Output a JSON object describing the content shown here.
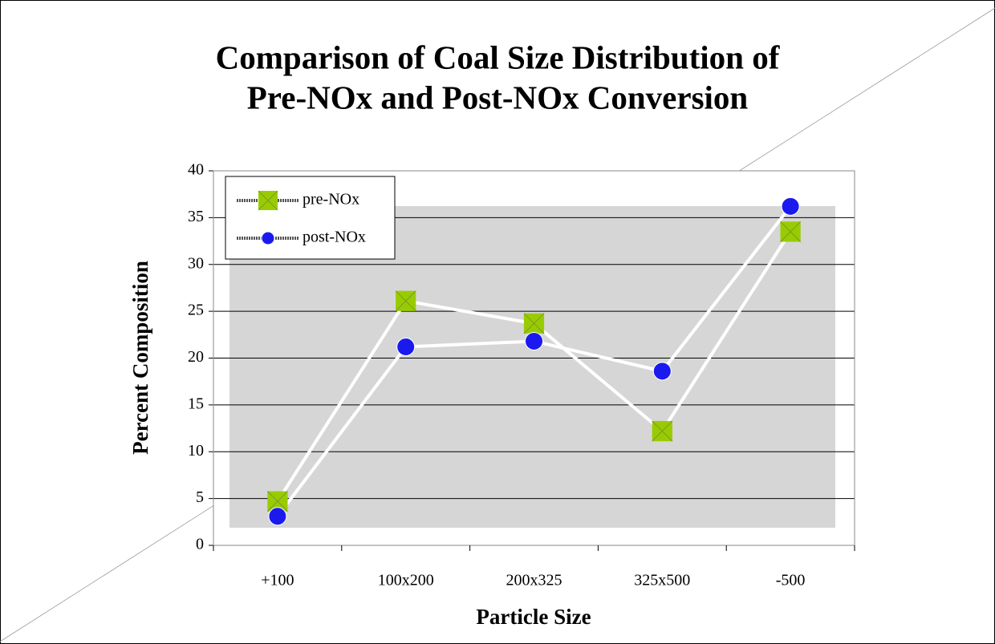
{
  "chart_data": {
    "type": "line",
    "title": [
      "Comparison of Coal Size Distribution of",
      "Pre-NOx and Post-NOx Conversion"
    ],
    "x_label": "Particle Size",
    "y_label": "Percent Composition",
    "categories": [
      "+100",
      "100x200",
      "200x325",
      "325x500",
      "-500"
    ],
    "series": [
      {
        "name": "pre-NOx",
        "color": "#99cc00",
        "marker": "square-x",
        "values": [
          4.7,
          26.1,
          23.7,
          12.2,
          33.5
        ]
      },
      {
        "name": "post-NOx",
        "color": "#1a1aee",
        "marker": "circle",
        "values": [
          3.1,
          21.2,
          21.8,
          18.6,
          36.2
        ]
      }
    ],
    "ylim": [
      0,
      40
    ],
    "yticks": [
      0,
      5,
      10,
      15,
      20,
      25,
      30,
      35,
      40
    ],
    "grid": true,
    "legend": "top-left"
  }
}
